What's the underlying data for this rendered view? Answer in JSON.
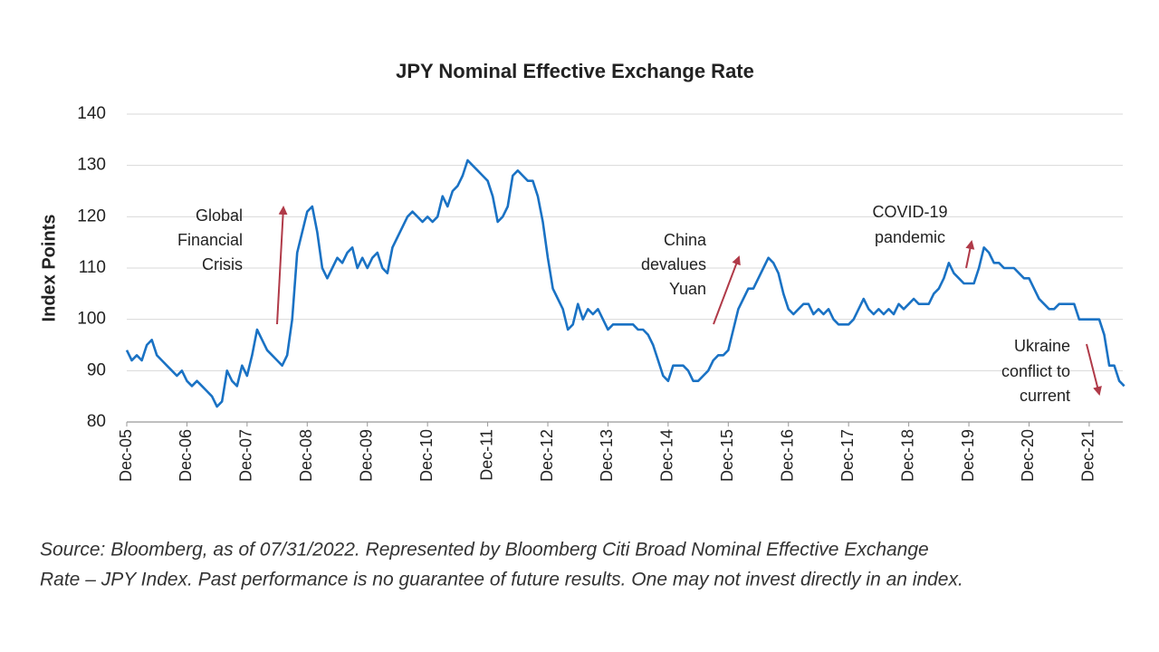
{
  "chart_data": {
    "type": "line",
    "title": "JPY Nominal Effective Exchange Rate",
    "y_label": "Index Points",
    "categories": [
      "Dec-05",
      null,
      null,
      null,
      null,
      null,
      null,
      null,
      null,
      null,
      null,
      null,
      "Dec-06",
      null,
      null,
      null,
      null,
      null,
      null,
      null,
      null,
      null,
      null,
      null,
      "Dec-07",
      null,
      null,
      null,
      null,
      null,
      null,
      null,
      null,
      null,
      null,
      null,
      "Dec-08",
      null,
      null,
      null,
      null,
      null,
      null,
      null,
      null,
      null,
      null,
      null,
      "Dec-09",
      null,
      null,
      null,
      null,
      null,
      null,
      null,
      null,
      null,
      null,
      null,
      "Dec-10",
      null,
      null,
      null,
      null,
      null,
      null,
      null,
      null,
      null,
      null,
      null,
      "Dec-11",
      null,
      null,
      null,
      null,
      null,
      null,
      null,
      null,
      null,
      null,
      null,
      "Dec-12",
      null,
      null,
      null,
      null,
      null,
      null,
      null,
      null,
      null,
      null,
      null,
      "Dec-13",
      null,
      null,
      null,
      null,
      null,
      null,
      null,
      null,
      null,
      null,
      null,
      "Dec-14",
      null,
      null,
      null,
      null,
      null,
      null,
      null,
      null,
      null,
      null,
      null,
      "Dec-15",
      null,
      null,
      null,
      null,
      null,
      null,
      null,
      null,
      null,
      null,
      null,
      "Dec-16",
      null,
      null,
      null,
      null,
      null,
      null,
      null,
      null,
      null,
      null,
      null,
      "Dec-17",
      null,
      null,
      null,
      null,
      null,
      null,
      null,
      null,
      null,
      null,
      null,
      "Dec-18",
      null,
      null,
      null,
      null,
      null,
      null,
      null,
      null,
      null,
      null,
      null,
      "Dec-19",
      null,
      null,
      null,
      null,
      null,
      null,
      null,
      null,
      null,
      null,
      null,
      "Dec-20",
      null,
      null,
      null,
      null,
      null,
      null,
      null,
      null,
      null,
      null,
      null,
      "Dec-21",
      null,
      null,
      null,
      null,
      null,
      null,
      null
    ],
    "series": [
      {
        "name": "JPY Index",
        "color": "#1a72c4",
        "values": [
          94,
          92,
          93,
          92,
          95,
          96,
          93,
          92,
          91,
          90,
          89,
          90,
          88,
          87,
          88,
          87,
          86,
          85,
          83,
          84,
          90,
          88,
          87,
          91,
          89,
          93,
          98,
          96,
          94,
          93,
          92,
          91,
          93,
          100,
          113,
          117,
          121,
          122,
          117,
          110,
          108,
          110,
          112,
          111,
          113,
          114,
          110,
          112,
          110,
          112,
          113,
          110,
          109,
          114,
          116,
          118,
          120,
          121,
          120,
          119,
          120,
          119,
          120,
          124,
          122,
          125,
          126,
          128,
          131,
          130,
          129,
          128,
          127,
          124,
          119,
          120,
          122,
          128,
          129,
          128,
          127,
          127,
          124,
          119,
          112,
          106,
          104,
          102,
          98,
          99,
          103,
          100,
          102,
          101,
          102,
          100,
          98,
          99,
          99,
          99,
          99,
          99,
          98,
          98,
          97,
          95,
          92,
          89,
          88,
          91,
          91,
          91,
          90,
          88,
          88,
          89,
          90,
          92,
          93,
          93,
          94,
          98,
          102,
          104,
          106,
          106,
          108,
          110,
          112,
          111,
          109,
          105,
          102,
          101,
          102,
          103,
          103,
          101,
          102,
          101,
          102,
          100,
          99,
          99,
          99,
          100,
          102,
          104,
          102,
          101,
          102,
          101,
          102,
          101,
          103,
          102,
          103,
          104,
          103,
          103,
          103,
          105,
          106,
          108,
          111,
          109,
          108,
          107,
          107,
          107,
          110,
          114,
          113,
          111,
          111,
          110,
          110,
          110,
          109,
          108,
          108,
          106,
          104,
          103,
          102,
          102,
          103,
          103,
          103,
          103,
          100,
          100,
          100,
          100,
          100,
          97,
          91,
          91,
          88,
          87
        ]
      }
    ],
    "ylim": [
      80,
      140
    ],
    "yticks": [
      80,
      90,
      100,
      110,
      120,
      130,
      140
    ],
    "grid": true,
    "annotations": [
      {
        "lines": [
          "Global",
          "Financial",
          "Crisis"
        ]
      },
      {
        "lines": [
          "China",
          "devalues",
          "Yuan"
        ]
      },
      {
        "lines": [
          "COVID-19",
          "pandemic"
        ]
      },
      {
        "lines": [
          "Ukraine",
          "conflict to",
          "current"
        ]
      }
    ],
    "source": [
      "Source: Bloomberg, as of 07/31/2022. Represented by Bloomberg Citi Broad Nominal Effective Exchange",
      "Rate – JPY Index. Past performance is no guarantee of future results. One may not invest directly in an index."
    ]
  }
}
